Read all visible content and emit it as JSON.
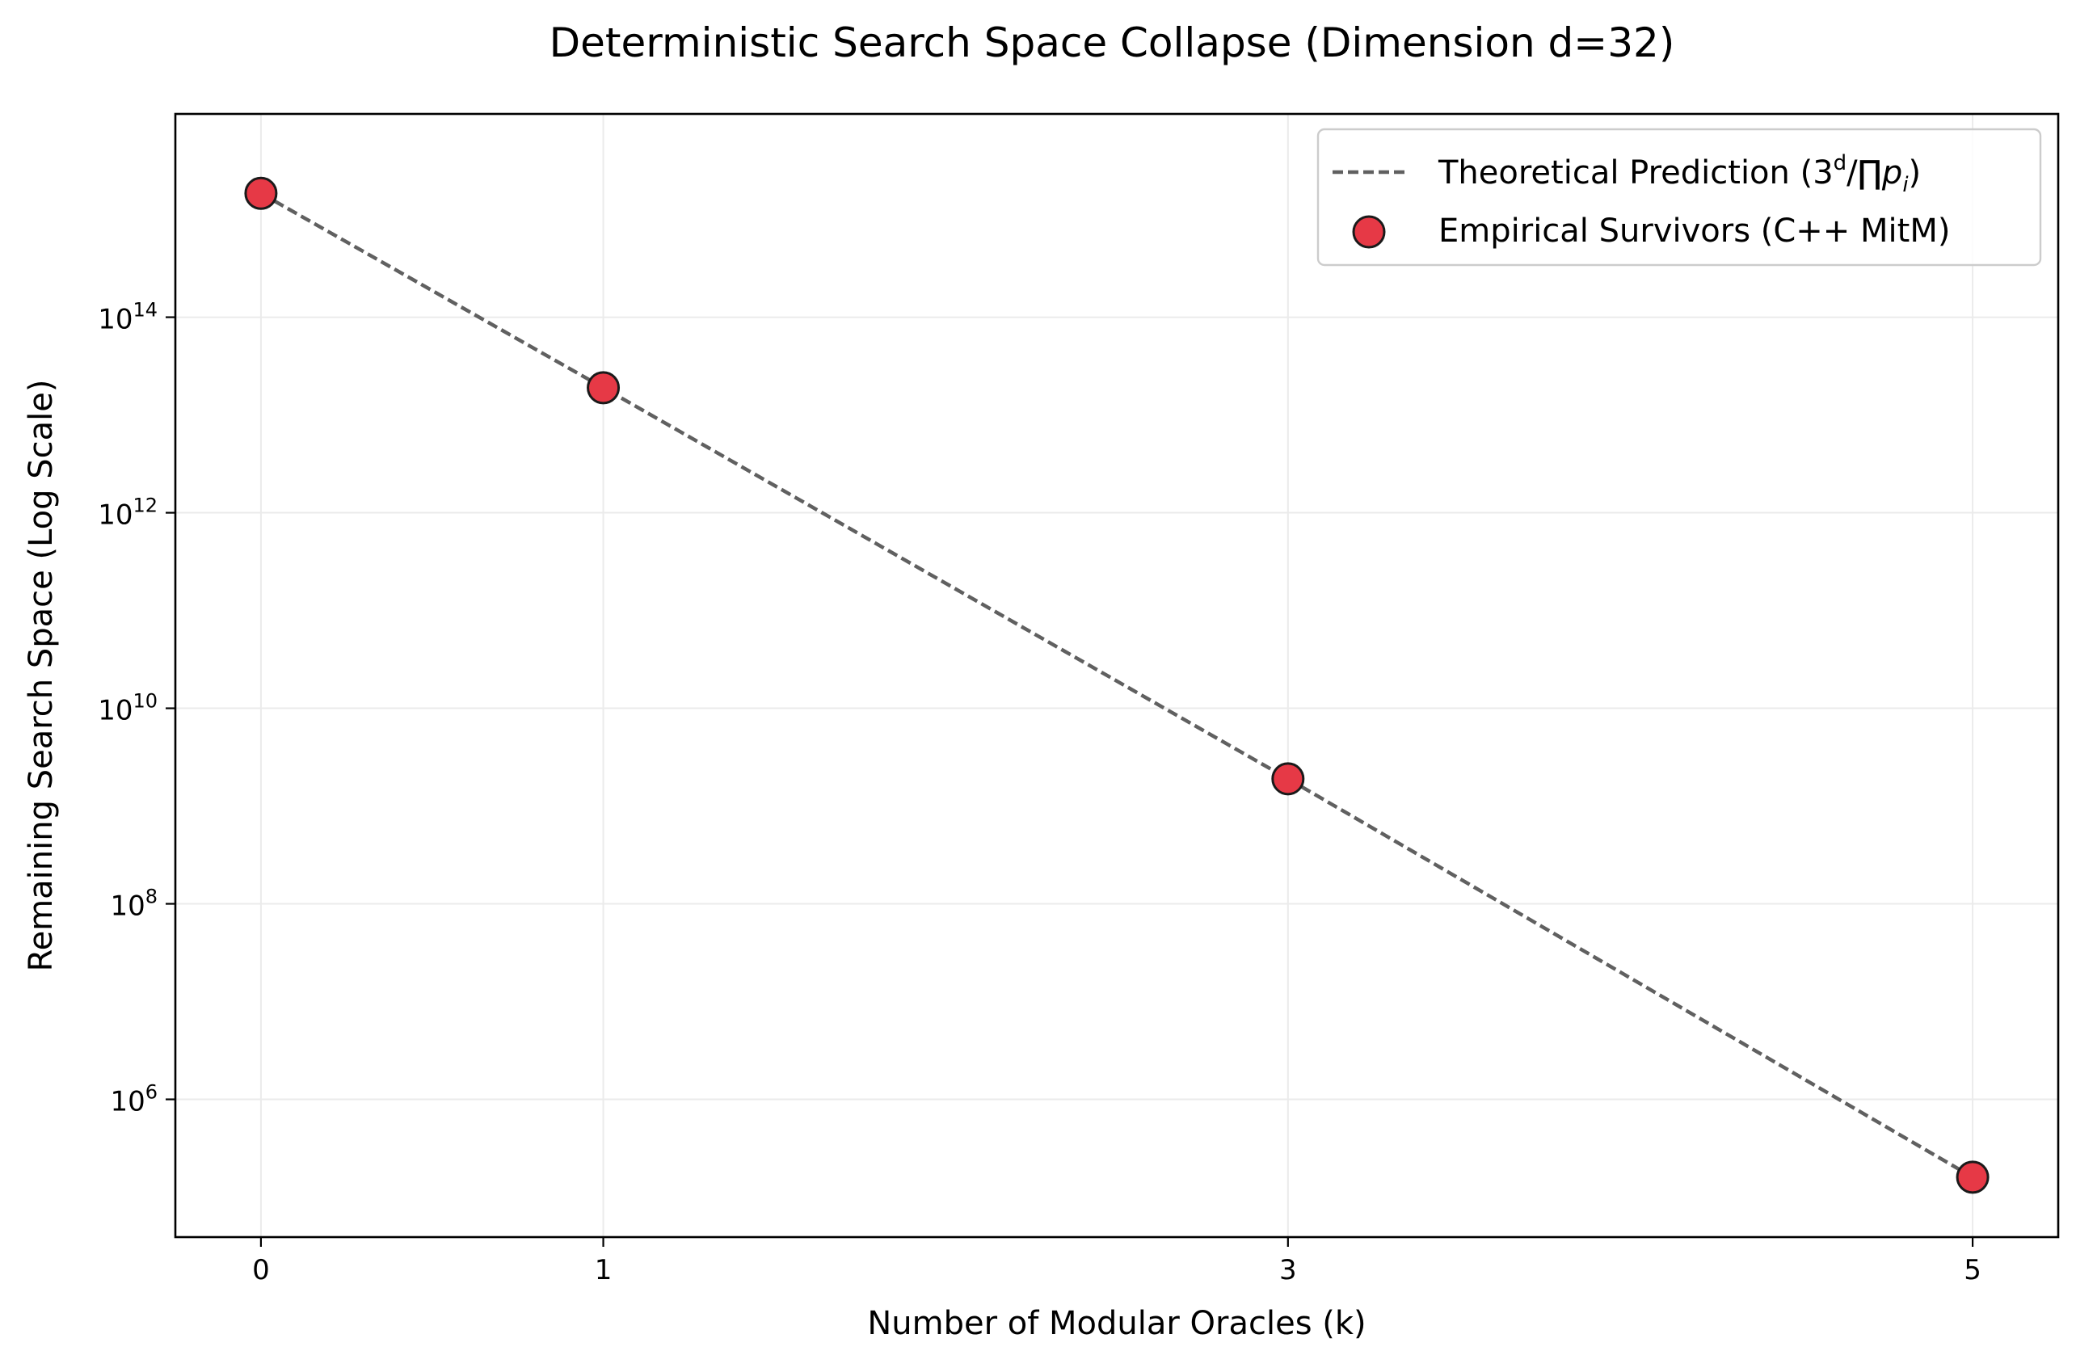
{
  "chart_data": {
    "type": "scatter",
    "title": "Deterministic Search Space Collapse (Dimension d=32)",
    "xlabel": "Number of Modular Oracles (k)",
    "ylabel": "Remaining Search Space (Log Scale)",
    "x_ticks": [
      0,
      1,
      3,
      5
    ],
    "y_scale": "log",
    "y_ticks": [
      {
        "base": "10",
        "exponent": "6",
        "value": 1000000.0
      },
      {
        "base": "10",
        "exponent": "8",
        "value": 100000000.0
      },
      {
        "base": "10",
        "exponent": "10",
        "value": 10000000000.0
      },
      {
        "base": "10",
        "exponent": "12",
        "value": 1000000000000.0
      },
      {
        "base": "10",
        "exponent": "14",
        "value": 100000000000000.0
      }
    ],
    "xlim": [
      -0.25,
      5.25
    ],
    "ylim": [
      39000.0,
      1.2e+16
    ],
    "grid": true,
    "legend_position": "top-right",
    "series": [
      {
        "name_parts": {
          "base": "Theoretical Prediction (3",
          "sup": "d",
          "mid": "/∏",
          "p": "p",
          "sub": "i",
          "end": ")"
        },
        "kind": "line",
        "style": "dashed",
        "color": "#606060",
        "x": [
          0,
          1,
          3,
          5
        ],
        "y": [
          1850000000000000.0,
          19000000000000.0,
          1900000000.0,
          160000.0
        ]
      },
      {
        "name": "Empirical Survivors (C++ MitM)",
        "kind": "scatter",
        "color": "#e63946",
        "edge_color": "#1a1a1a",
        "x": [
          0,
          1,
          3,
          5
        ],
        "y": [
          1850000000000000.0,
          19000000000000.0,
          1900000000.0,
          160000.0
        ]
      }
    ]
  }
}
